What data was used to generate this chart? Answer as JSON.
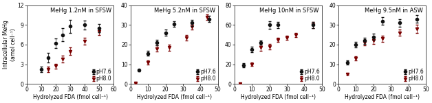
{
  "panels": [
    {
      "title": "MeHg 1.2nM in SFSW",
      "xlim": [
        0,
        60
      ],
      "ylim": [
        0,
        12
      ],
      "yticks": [
        0,
        3,
        6,
        9,
        12
      ],
      "xticks": [
        0,
        10,
        20,
        30,
        40,
        50,
        60
      ],
      "ph76_x": [
        10,
        15,
        20,
        25,
        30,
        40,
        50
      ],
      "ph76_y": [
        2.2,
        4.0,
        6.2,
        7.5,
        8.8,
        9.0,
        8.5
      ],
      "ph76_yerr": [
        0.4,
        0.7,
        0.7,
        1.0,
        1.0,
        0.7,
        0.6
      ],
      "ph80_x": [
        15,
        20,
        25,
        30,
        40,
        50
      ],
      "ph80_y": [
        2.2,
        2.7,
        3.8,
        5.0,
        6.5,
        8.0
      ],
      "ph80_yerr": [
        0.4,
        0.4,
        0.5,
        0.6,
        0.5,
        0.5
      ]
    },
    {
      "title": "MeHg 5.2nM in SFSW",
      "xlim": [
        0,
        50
      ],
      "ylim": [
        0,
        40
      ],
      "yticks": [
        0,
        10,
        20,
        30,
        40
      ],
      "xticks": [
        0,
        10,
        20,
        30,
        40,
        50
      ],
      "ph76_x": [
        5,
        10,
        15,
        20,
        25,
        35,
        45
      ],
      "ph76_y": [
        7.0,
        15.5,
        21.0,
        26.0,
        30.5,
        31.0,
        33.0
      ],
      "ph76_yerr": [
        0.6,
        1.2,
        1.5,
        1.5,
        1.5,
        1.5,
        1.5
      ],
      "ph80_x": [
        3,
        10,
        15,
        22,
        32,
        35,
        44
      ],
      "ph80_y": [
        0.5,
        11.0,
        18.0,
        18.5,
        23.5,
        29.0,
        34.0
      ],
      "ph80_yerr": [
        0.2,
        1.0,
        1.5,
        1.5,
        1.5,
        1.5,
        1.5
      ]
    },
    {
      "title": "MeHg 10nM in SFSW",
      "xlim": [
        0,
        50
      ],
      "ylim": [
        0,
        80
      ],
      "yticks": [
        0,
        20,
        40,
        60,
        80
      ],
      "xticks": [
        0,
        10,
        20,
        30,
        40,
        50
      ],
      "ph76_x": [
        5,
        10,
        15,
        20,
        25,
        45
      ],
      "ph76_y": [
        19,
        35,
        42,
        60,
        60,
        60
      ],
      "ph76_yerr": [
        2,
        3,
        2,
        4,
        3,
        3
      ],
      "ph80_x": [
        3,
        10,
        15,
        20,
        25,
        30,
        35,
        45
      ],
      "ph80_y": [
        0.5,
        20,
        37,
        38,
        45,
        47,
        50,
        60
      ],
      "ph80_yerr": [
        0.2,
        2,
        3,
        3,
        2,
        2,
        2,
        3
      ]
    },
    {
      "title": "MeHg 9.5nM in ASW",
      "xlim": [
        0,
        50
      ],
      "ylim": [
        0,
        40
      ],
      "yticks": [
        0,
        10,
        20,
        30,
        40
      ],
      "xticks": [
        0,
        10,
        20,
        30,
        40,
        50
      ],
      "ph76_x": [
        5,
        10,
        15,
        20,
        25,
        35,
        45
      ],
      "ph76_y": [
        11,
        20,
        22,
        24,
        32,
        31,
        33
      ],
      "ph76_yerr": [
        1.0,
        1.5,
        1.5,
        1.5,
        2.0,
        2.0,
        2.0
      ],
      "ph80_x": [
        5,
        10,
        15,
        20,
        25,
        35,
        45
      ],
      "ph80_y": [
        5,
        13,
        21,
        22,
        23,
        26,
        28
      ],
      "ph80_yerr": [
        0.5,
        1.0,
        1.5,
        1.5,
        1.5,
        1.5,
        2.0
      ]
    }
  ],
  "ylabel": "Intracellular MeHg\n(amol cell⁻¹)",
  "xlabel": "Hydrolyzed FDA (fmol cell⁻¹)",
  "color_ph76": "#111111",
  "color_ph80": "#7B0000",
  "marker_ph76": "o",
  "marker_ph80": "v",
  "legend_labels": [
    "pH7.6",
    "pH8.0"
  ],
  "title_fontsize": 6.0,
  "label_fontsize": 5.5,
  "tick_fontsize": 5.5,
  "markersize": 3.0
}
